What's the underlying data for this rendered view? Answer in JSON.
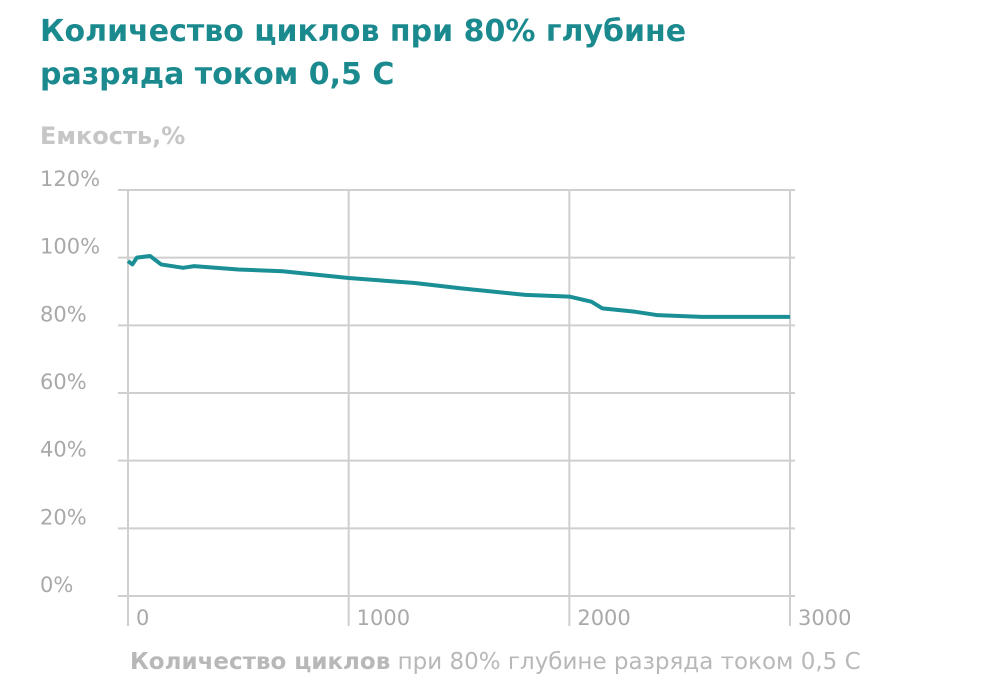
{
  "chart_data": {
    "type": "line",
    "title": "Количество циклов при 80% глубине разряда током 0,5 C",
    "y_label": "Емкость,%",
    "x_label_bold": "Количество циклов",
    "x_label_rest": "при 80% глубине разряда током 0,5 C",
    "x": [
      0,
      20,
      40,
      100,
      150,
      250,
      300,
      500,
      700,
      1000,
      1300,
      1500,
      1800,
      2000,
      2100,
      2150,
      2300,
      2400,
      2600,
      2700,
      3000
    ],
    "series": [
      {
        "color": "#1a9096",
        "values": [
          99,
          98,
          100,
          100.5,
          98,
          97,
          97.5,
          96.5,
          96,
          94,
          92.5,
          91,
          89,
          88.5,
          87,
          85,
          84,
          83,
          82.5,
          82.5,
          82.5
        ]
      }
    ],
    "xlim": [
      0,
      3000
    ],
    "xticks": [
      0,
      1000,
      2000,
      3000
    ],
    "ylim": [
      0,
      120
    ],
    "yticks": [
      {
        "value": 0,
        "label": "0%"
      },
      {
        "value": 20,
        "label": "20%"
      },
      {
        "value": 40,
        "label": "40%"
      },
      {
        "value": 60,
        "label": "60%"
      },
      {
        "value": 80,
        "label": "80%"
      },
      {
        "value": 100,
        "label": "100%"
      },
      {
        "value": 120,
        "label": "120%"
      }
    ],
    "grid": true
  }
}
